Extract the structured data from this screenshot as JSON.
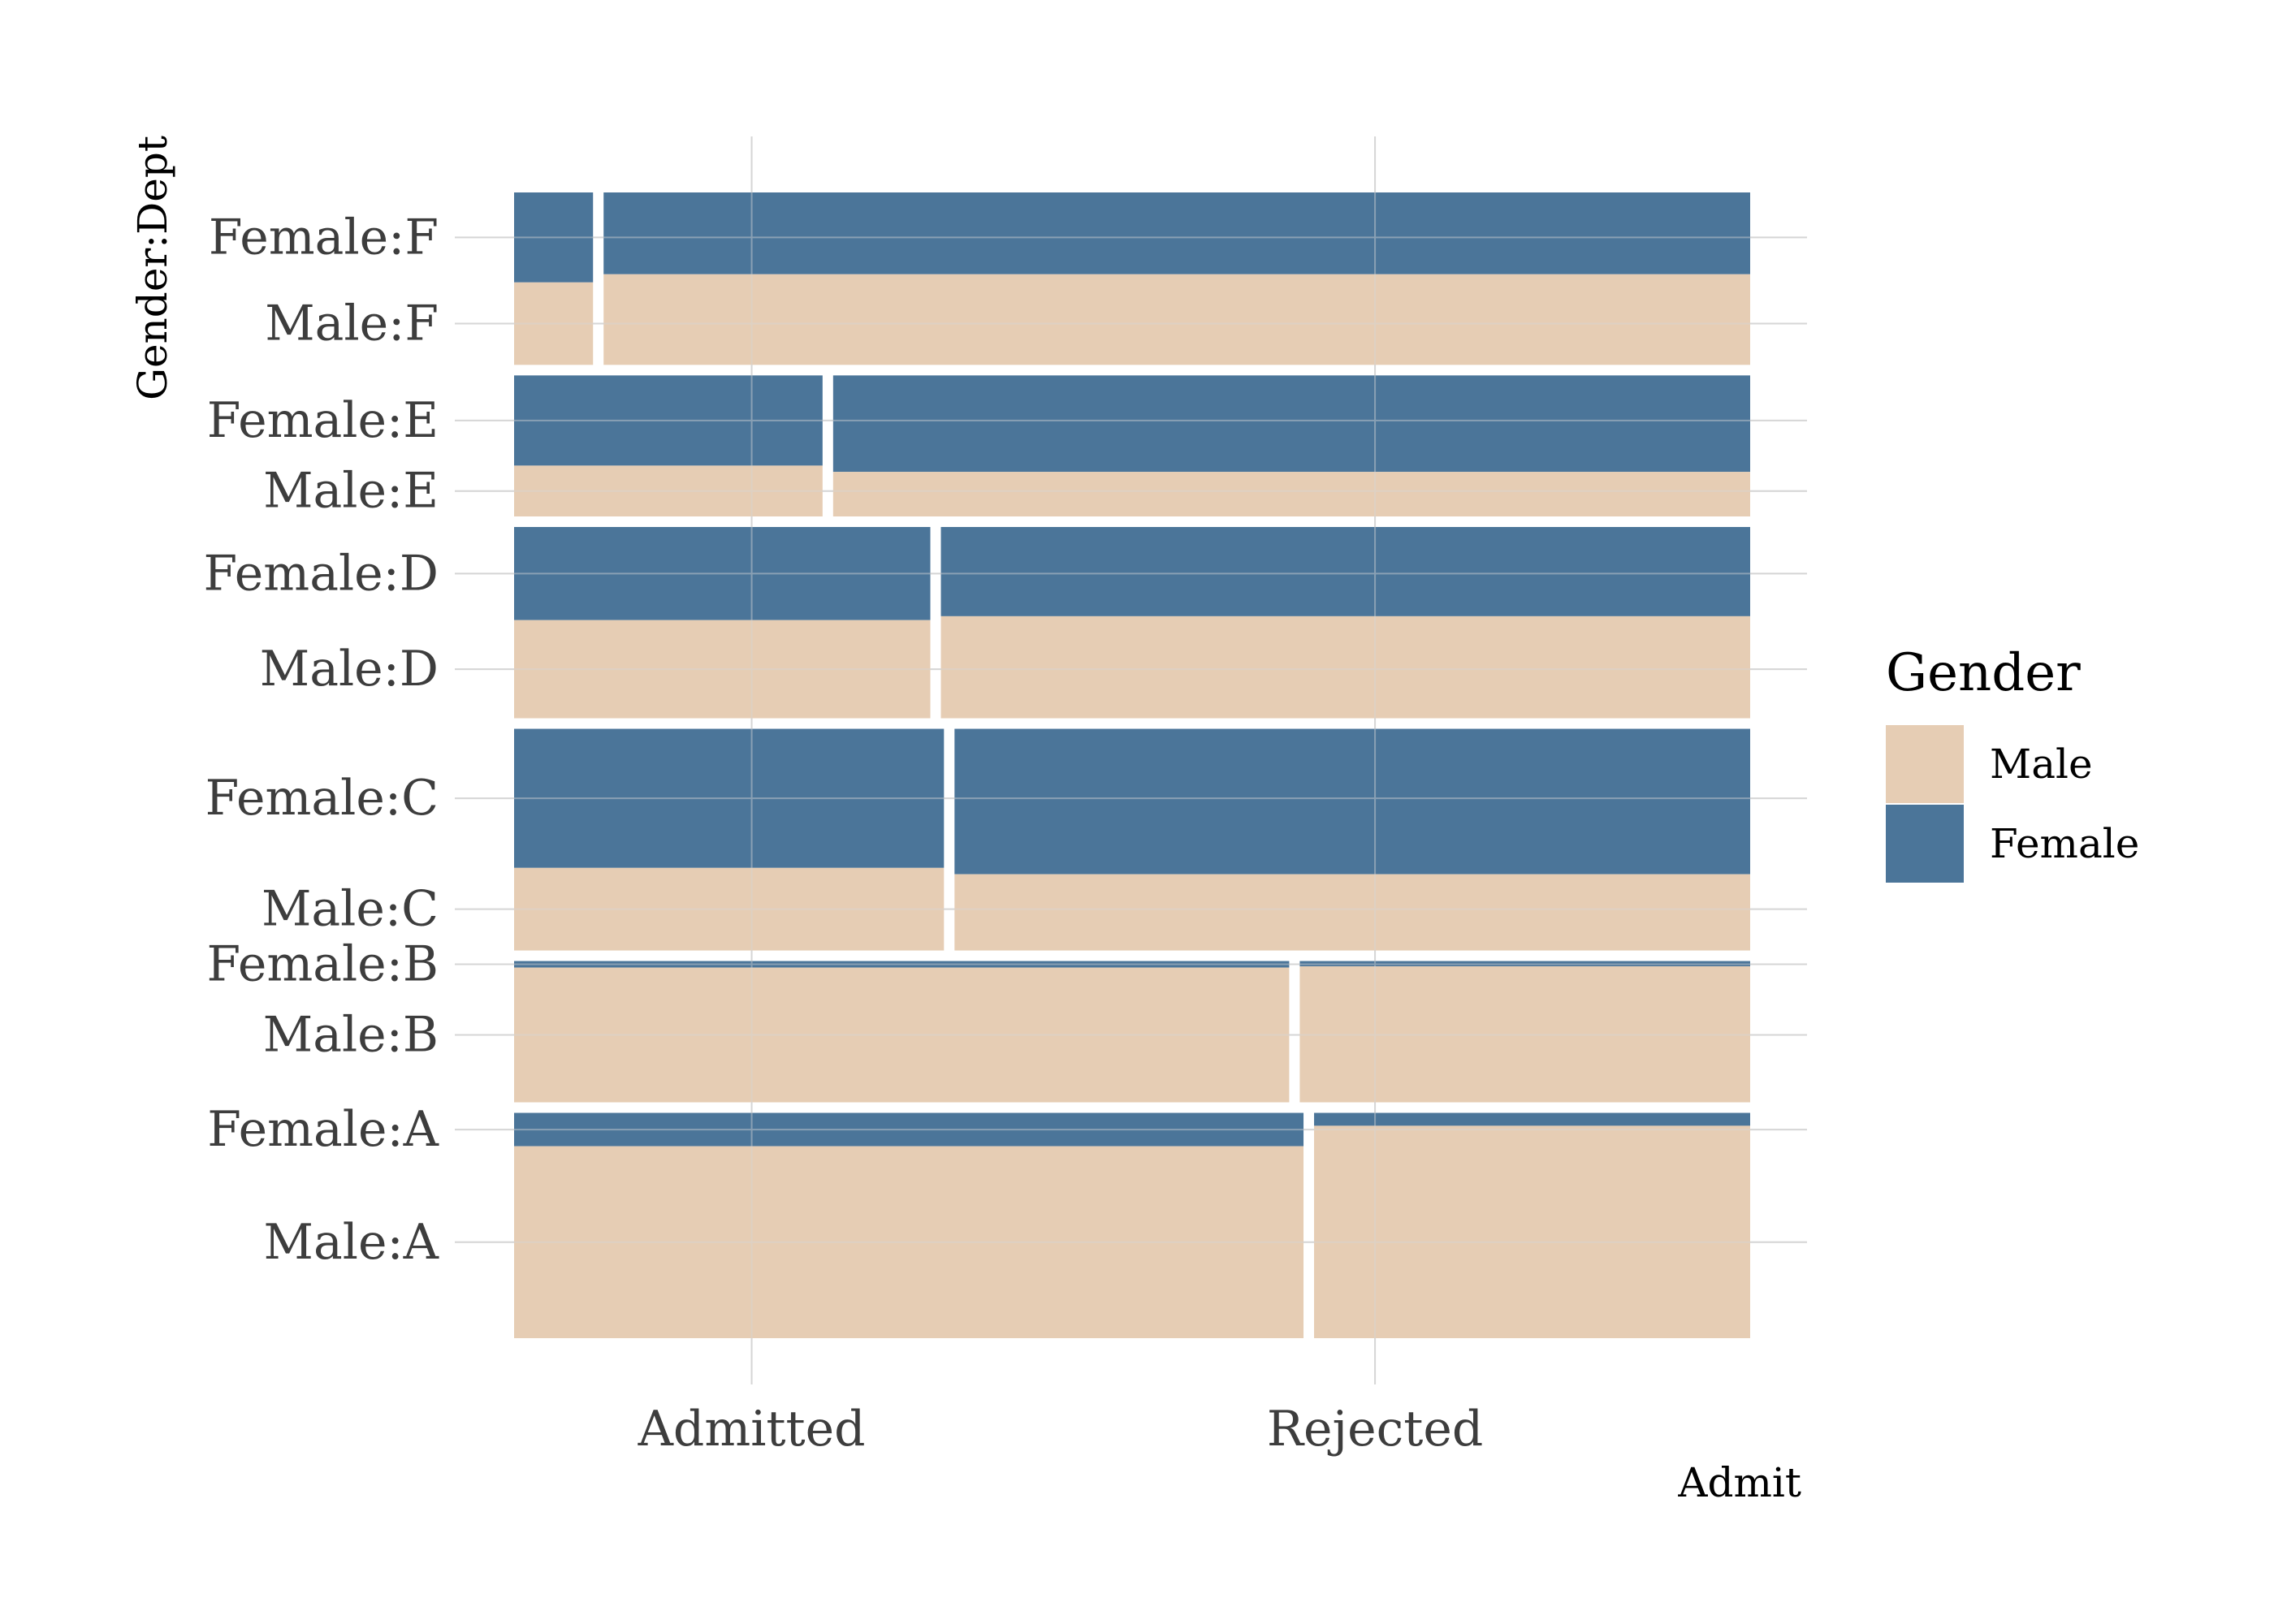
{
  "chart_data": {
    "type": "mosaic",
    "xlabel": "Admit",
    "ylabel": "Gender:Dept",
    "x_categories": [
      "Admitted",
      "Rejected"
    ],
    "y_categories": [
      "Female:F",
      "Male:F",
      "Female:E",
      "Male:E",
      "Female:D",
      "Male:D",
      "Female:C",
      "Male:C",
      "Female:B",
      "Male:B",
      "Female:A",
      "Male:A"
    ],
    "legend": {
      "title": "Gender",
      "placement": "right",
      "entries": [
        {
          "name": "Male",
          "color": "#E6CDB4"
        },
        {
          "name": "Female",
          "color": "#4B7599"
        }
      ]
    },
    "departments": [
      {
        "dept": "A",
        "admitted": {
          "Male": 512,
          "Female": 89
        },
        "rejected": {
          "Male": 313,
          "Female": 19
        }
      },
      {
        "dept": "B",
        "admitted": {
          "Male": 353,
          "Female": 17
        },
        "rejected": {
          "Male": 207,
          "Female": 8
        }
      },
      {
        "dept": "C",
        "admitted": {
          "Male": 120,
          "Female": 202
        },
        "rejected": {
          "Male": 205,
          "Female": 391
        }
      },
      {
        "dept": "D",
        "admitted": {
          "Male": 138,
          "Female": 131
        },
        "rejected": {
          "Male": 279,
          "Female": 244
        }
      },
      {
        "dept": "E",
        "admitted": {
          "Male": 53,
          "Female": 94
        },
        "rejected": {
          "Male": 138,
          "Female": 299
        }
      },
      {
        "dept": "F",
        "admitted": {
          "Male": 22,
          "Female": 24
        },
        "rejected": {
          "Male": 351,
          "Female": 317
        }
      }
    ],
    "grid": true
  }
}
